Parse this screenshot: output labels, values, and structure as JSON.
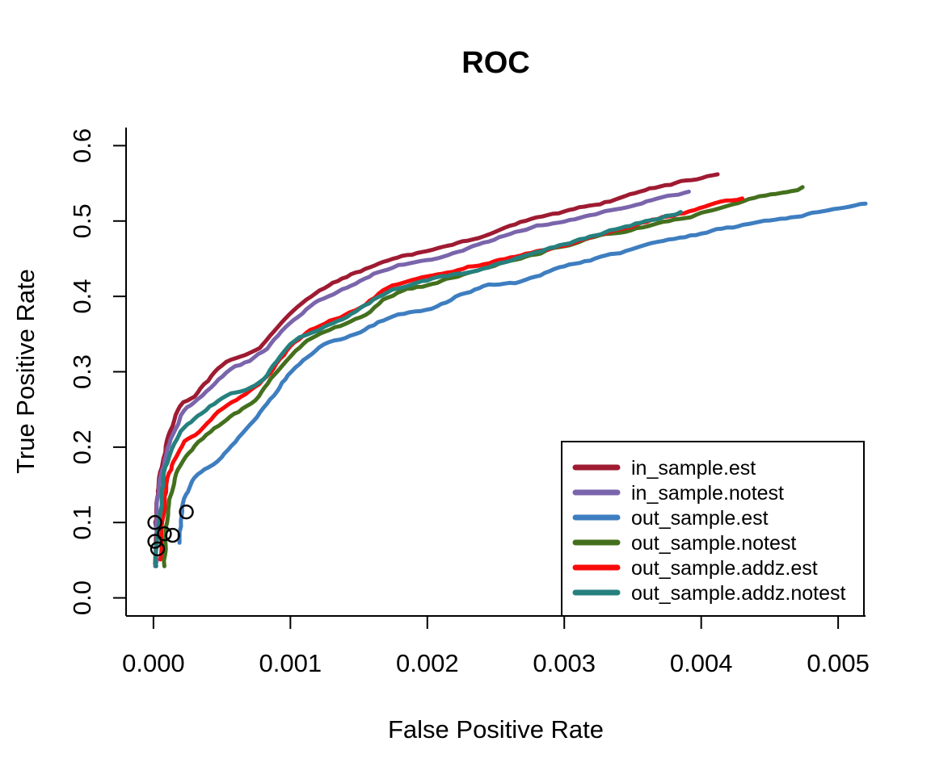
{
  "chart_data": {
    "type": "line",
    "title": "ROC",
    "xlabel": "False Positive Rate",
    "ylabel": "True Positive Rate",
    "xlim": [
      -0.0002,
      0.0052
    ],
    "ylim": [
      -0.024,
      0.624
    ],
    "grid": false,
    "legend_position": "bottom-right",
    "x_ticks": {
      "values": [
        0.0,
        0.001,
        0.002,
        0.003,
        0.004,
        0.005
      ],
      "labels": [
        "0.000",
        "0.001",
        "0.002",
        "0.003",
        "0.004",
        "0.005"
      ]
    },
    "y_ticks": {
      "values": [
        0.0,
        0.1,
        0.2,
        0.3,
        0.4,
        0.5,
        0.6
      ],
      "labels": [
        "0.0",
        "0.1",
        "0.2",
        "0.3",
        "0.4",
        "0.5",
        "0.6"
      ]
    },
    "series": [
      {
        "name": "in_sample.est",
        "color": "#9E1B32",
        "points": [
          [
            1.2e-05,
            0.045
          ],
          [
            2e-05,
            0.105
          ],
          [
            4e-05,
            0.15
          ],
          [
            7e-05,
            0.185
          ],
          [
            0.00012,
            0.22
          ],
          [
            0.0002,
            0.253
          ],
          [
            0.0003,
            0.267
          ],
          [
            0.0005,
            0.308
          ],
          [
            0.00077,
            0.333
          ],
          [
            0.001,
            0.375
          ],
          [
            0.00121,
            0.408
          ],
          [
            0.00151,
            0.434
          ],
          [
            0.00171,
            0.448
          ],
          [
            0.00185,
            0.455
          ],
          [
            0.00207,
            0.463
          ],
          [
            0.00241,
            0.48
          ],
          [
            0.00272,
            0.5
          ],
          [
            0.003,
            0.511
          ],
          [
            0.00341,
            0.53
          ],
          [
            0.0037,
            0.545
          ],
          [
            0.00412,
            0.562
          ]
        ]
      },
      {
        "name": "in_sample.notest",
        "color": "#7A65AC",
        "points": [
          [
            1.2e-05,
            0.042
          ],
          [
            2e-05,
            0.095
          ],
          [
            4e-05,
            0.14
          ],
          [
            8e-05,
            0.175
          ],
          [
            0.00013,
            0.21
          ],
          [
            0.0002,
            0.242
          ],
          [
            0.0003,
            0.258
          ],
          [
            0.0005,
            0.295
          ],
          [
            0.00077,
            0.322
          ],
          [
            0.001,
            0.363
          ],
          [
            0.00121,
            0.394
          ],
          [
            0.00151,
            0.42
          ],
          [
            0.00171,
            0.437
          ],
          [
            0.00207,
            0.452
          ],
          [
            0.00241,
            0.47
          ],
          [
            0.00272,
            0.49
          ],
          [
            0.003,
            0.501
          ],
          [
            0.00341,
            0.518
          ],
          [
            0.00391,
            0.539
          ]
        ]
      },
      {
        "name": "out_sample.est",
        "color": "#3E7EC0",
        "points": [
          [
            0.00019,
            0.073
          ],
          [
            0.00021,
            0.12
          ],
          [
            0.00025,
            0.145
          ],
          [
            0.0003,
            0.159
          ],
          [
            0.0004,
            0.173
          ],
          [
            0.0005,
            0.186
          ],
          [
            0.00062,
            0.213
          ],
          [
            0.00077,
            0.247
          ],
          [
            0.0009,
            0.275
          ],
          [
            0.001,
            0.3
          ],
          [
            0.00121,
            0.333
          ],
          [
            0.00151,
            0.352
          ],
          [
            0.00171,
            0.371
          ],
          [
            0.00207,
            0.386
          ],
          [
            0.00228,
            0.405
          ],
          [
            0.00241,
            0.413
          ],
          [
            0.00272,
            0.421
          ],
          [
            0.003,
            0.44
          ],
          [
            0.00341,
            0.458
          ],
          [
            0.004,
            0.483
          ],
          [
            0.0045,
            0.5
          ],
          [
            0.0052,
            0.523
          ]
        ]
      },
      {
        "name": "out_sample.notest",
        "color": "#44701E",
        "points": [
          [
            8e-05,
            0.042
          ],
          [
            0.0001,
            0.1
          ],
          [
            0.00013,
            0.14
          ],
          [
            0.0002,
            0.175
          ],
          [
            0.0003,
            0.201
          ],
          [
            0.0005,
            0.233
          ],
          [
            0.00077,
            0.268
          ],
          [
            0.001,
            0.324
          ],
          [
            0.00121,
            0.352
          ],
          [
            0.00151,
            0.373
          ],
          [
            0.00171,
            0.399
          ],
          [
            0.00207,
            0.418
          ],
          [
            0.00241,
            0.436
          ],
          [
            0.00272,
            0.453
          ],
          [
            0.003,
            0.467
          ],
          [
            0.00341,
            0.486
          ],
          [
            0.004,
            0.511
          ],
          [
            0.00474,
            0.545
          ]
        ]
      },
      {
        "name": "out_sample.addz.est",
        "color": "#F90B0B",
        "points": [
          [
            5e-05,
            0.051
          ],
          [
            7e-05,
            0.11
          ],
          [
            0.0001,
            0.15
          ],
          [
            0.00015,
            0.18
          ],
          [
            0.0002,
            0.202
          ],
          [
            0.0003,
            0.217
          ],
          [
            0.0005,
            0.252
          ],
          [
            0.00077,
            0.284
          ],
          [
            0.001,
            0.333
          ],
          [
            0.00121,
            0.361
          ],
          [
            0.00151,
            0.386
          ],
          [
            0.00171,
            0.411
          ],
          [
            0.00207,
            0.429
          ],
          [
            0.00241,
            0.444
          ],
          [
            0.00272,
            0.456
          ],
          [
            0.003,
            0.468
          ],
          [
            0.00341,
            0.49
          ],
          [
            0.0043,
            0.53
          ]
        ]
      },
      {
        "name": "out_sample.addz.notest",
        "color": "#25807E",
        "points": [
          [
            2e-05,
            0.042
          ],
          [
            4e-05,
            0.105
          ],
          [
            7e-05,
            0.155
          ],
          [
            0.00012,
            0.19
          ],
          [
            0.0002,
            0.221
          ],
          [
            0.0003,
            0.236
          ],
          [
            0.0005,
            0.265
          ],
          [
            0.00077,
            0.288
          ],
          [
            0.001,
            0.336
          ],
          [
            0.00121,
            0.357
          ],
          [
            0.00151,
            0.383
          ],
          [
            0.00171,
            0.405
          ],
          [
            0.00207,
            0.425
          ],
          [
            0.00241,
            0.436
          ],
          [
            0.00272,
            0.456
          ],
          [
            0.003,
            0.47
          ],
          [
            0.00341,
            0.491
          ],
          [
            0.00385,
            0.512
          ]
        ]
      }
    ],
    "scatter_points": {
      "name": "threshold-markers",
      "color": "#000000",
      "points": [
        [
          0.00024,
          0.114
        ],
        [
          1e-05,
          0.1
        ],
        [
          8e-05,
          0.085
        ],
        [
          0.00014,
          0.083
        ],
        [
          1e-05,
          0.075
        ],
        [
          3e-05,
          0.065
        ]
      ]
    }
  },
  "styles": {
    "background": "#ffffff",
    "axis_color": "#000000",
    "text_color": "#000000",
    "legend_border_color": "#000000"
  }
}
